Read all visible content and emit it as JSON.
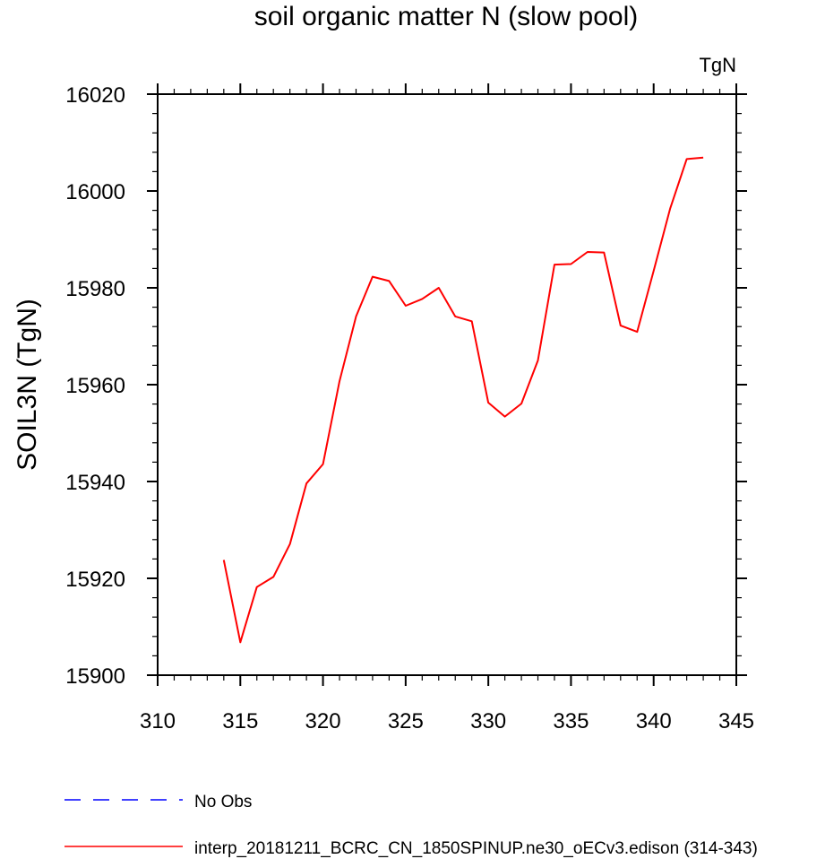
{
  "chart_data": {
    "type": "line",
    "title": "soil organic matter N (slow pool)",
    "units_label": "TgN",
    "xlabel": "",
    "ylabel": "SOIL3N  (TgN)",
    "xlim": [
      310,
      345
    ],
    "ylim": [
      15900,
      16020
    ],
    "x_ticks": [
      310,
      315,
      320,
      325,
      330,
      335,
      340,
      345
    ],
    "y_ticks": [
      15900,
      15920,
      15940,
      15960,
      15980,
      16000,
      16020
    ],
    "x_tick_labels": [
      "310",
      "315",
      "320",
      "325",
      "330",
      "335",
      "340",
      "345"
    ],
    "y_tick_labels": [
      "15900",
      "15920",
      "15940",
      "15960",
      "15980",
      "16000",
      "16020"
    ],
    "series": [
      {
        "name": "interp_20181211_BCRC_CN_1850SPINUP.ne30_oECv3.edison (314-343)",
        "color": "#ff0000",
        "x": [
          314,
          315,
          316,
          317,
          318,
          319,
          320,
          321,
          322,
          323,
          324,
          325,
          326,
          327,
          328,
          329,
          330,
          331,
          332,
          333,
          334,
          335,
          336,
          337,
          338,
          339,
          340,
          341,
          342,
          343
        ],
        "values": [
          15923.8,
          15906.8,
          15918.2,
          15920.3,
          15927.1,
          15939.6,
          15943.6,
          15960.7,
          15974.1,
          15982.3,
          15981.4,
          15976.3,
          15977.7,
          15980.0,
          15974.1,
          15973.1,
          15956.3,
          15953.4,
          15956.1,
          15965.0,
          15984.8,
          15984.9,
          15987.4,
          15987.3,
          15972.2,
          15970.9,
          15983.5,
          15996.4,
          16006.6,
          16006.9
        ]
      }
    ],
    "legend": [
      {
        "label": "No Obs",
        "color": "#0000ff",
        "style": "dashed"
      },
      {
        "label": "interp_20181211_BCRC_CN_1850SPINUP.ne30_oECv3.edison (314-343)",
        "color": "#ff0000",
        "style": "solid"
      }
    ]
  }
}
